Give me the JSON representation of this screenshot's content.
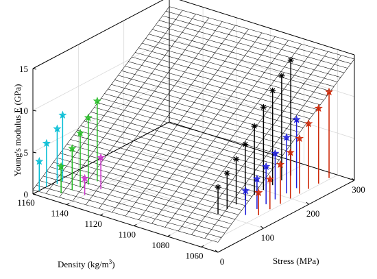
{
  "chart_data": {
    "type": "scatter",
    "subtype": "3d-stem-with-surface",
    "title": "",
    "xlabel": "Stress (MPa)",
    "ylabel_main": "Density (kg/m",
    "ylabel_sup": "3",
    "ylabel_close": ")",
    "zlabel": "Young's modulus E (GPa)",
    "xlim": [
      0,
      300
    ],
    "ylim": [
      1050,
      1160
    ],
    "zlim": [
      0,
      15
    ],
    "x_ticks": [
      "0",
      "100",
      "200",
      "300"
    ],
    "y_ticks": [
      "1060",
      "1080",
      "1100",
      "1120",
      "1140",
      "1160"
    ],
    "z_ticks": [
      "0",
      "5",
      "10",
      "15"
    ],
    "grid": true,
    "surface": {
      "type": "plane",
      "rows": 40,
      "cols": 14,
      "z_corners": {
        "x0_ymax": 0.5,
        "x0_ymin": 1.2,
        "xmax_ymin": 14.5,
        "xmax_ymax": 13.8
      },
      "color": "#000000"
    },
    "series": [
      {
        "color": "#00bcd4",
        "marker": "pentagram",
        "points": [
          [
            14,
            1160,
            3.5
          ],
          [
            30,
            1160,
            5.2
          ],
          [
            46,
            1158,
            6.6
          ],
          [
            58,
            1158,
            7.9
          ]
        ]
      },
      {
        "color": "#22bb22",
        "marker": "pentagram",
        "points": [
          [
            25,
            1150,
            3.2
          ],
          [
            42,
            1148,
            5.0
          ],
          [
            56,
            1147,
            6.5
          ],
          [
            70,
            1146,
            8.0
          ],
          [
            86,
            1145,
            9.6
          ]
        ]
      },
      {
        "color": "#cc33cc",
        "marker": "pentagram",
        "points": [
          [
            40,
            1140,
            2.0
          ],
          [
            68,
            1138,
            3.8
          ]
        ]
      },
      {
        "color": "#000000",
        "marker": "asterisk",
        "points": [
          [
            100,
            1077,
            3.2
          ],
          [
            120,
            1077,
            4.3
          ],
          [
            140,
            1077,
            5.4
          ],
          [
            160,
            1077,
            6.6
          ],
          [
            180,
            1077,
            8.2
          ],
          [
            200,
            1077,
            9.9
          ],
          [
            220,
            1077,
            11.3
          ],
          [
            240,
            1077,
            12.5
          ],
          [
            260,
            1077,
            13.8
          ]
        ]
      },
      {
        "color": "#1a1adb",
        "marker": "pentagram",
        "points": [
          [
            120,
            1066,
            2.9
          ],
          [
            145,
            1066,
            3.6
          ],
          [
            165,
            1066,
            4.5
          ],
          [
            185,
            1066,
            5.5
          ],
          [
            210,
            1066,
            6.7
          ],
          [
            232,
            1066,
            8.2
          ]
        ]
      },
      {
        "color": "#cc2200",
        "marker": "pentagram",
        "points": [
          [
            130,
            1061,
            2.7
          ],
          [
            155,
            1061,
            3.6
          ],
          [
            178,
            1061,
            4.7
          ],
          [
            200,
            1061,
            5.5
          ],
          [
            220,
            1061,
            6.6
          ],
          [
            240,
            1061,
            7.8
          ],
          [
            262,
            1061,
            9.0
          ],
          [
            285,
            1061,
            10.3
          ]
        ]
      }
    ]
  }
}
